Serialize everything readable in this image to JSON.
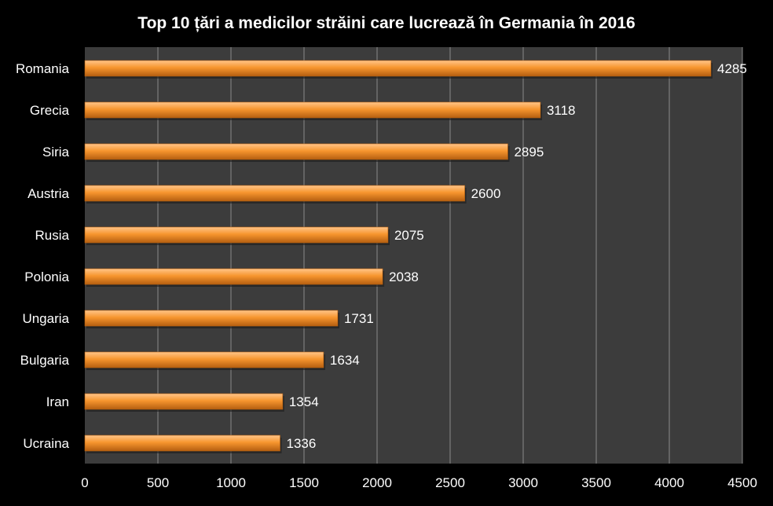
{
  "chart_data": {
    "type": "bar",
    "orientation": "horizontal",
    "title": "Top 10 țări a medicilor străini care lucrează în Germania în 2016",
    "categories": [
      "Romania",
      "Grecia",
      "Siria",
      "Austria",
      "Rusia",
      "Polonia",
      "Ungaria",
      "Bulgaria",
      "Iran",
      "Ucraina"
    ],
    "values": [
      4285,
      3118,
      2895,
      2600,
      2075,
      2038,
      1731,
      1634,
      1354,
      1336
    ],
    "value_labels": [
      "4285",
      "3118",
      "2895",
      "2600",
      "2075",
      "2038",
      "1731",
      "1634",
      "1354",
      "1336"
    ],
    "xlim": [
      0,
      4500
    ],
    "x_ticks": [
      0,
      500,
      1000,
      1500,
      2000,
      2500,
      3000,
      3500,
      4000,
      4500
    ],
    "x_tick_labels": [
      "0",
      "500",
      "1000",
      "1500",
      "2000",
      "2500",
      "3000",
      "3500",
      "4000",
      "4500"
    ],
    "grid": "vertical",
    "legend": "none",
    "colors": {
      "background": "#000000",
      "plot_area": "#3c3c3c",
      "gridline": "#8a8a8a",
      "bar_light": "#ffc58a",
      "bar_mid": "#f7962e",
      "bar_dark": "#b55f10",
      "text": "#ffffff"
    }
  }
}
